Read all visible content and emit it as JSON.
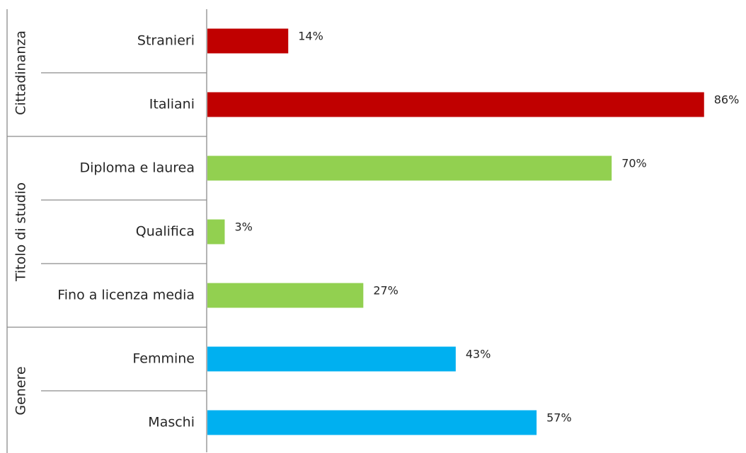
{
  "chart_data": {
    "type": "bar",
    "orientation": "horizontal",
    "xlim": [
      0,
      100
    ],
    "grid": false,
    "legend": "none",
    "groups": [
      {
        "label": "Cittadinanza",
        "color": "#c00000",
        "categories": [
          "Stranieri",
          "Italiani"
        ],
        "values": [
          14,
          86
        ],
        "data_labels": [
          "14%",
          "86%"
        ]
      },
      {
        "label": "Titolo di studio",
        "color": "#92d050",
        "categories": [
          "Diploma e laurea",
          "Qualifica",
          "Fino a licenza media"
        ],
        "values": [
          70,
          3,
          27
        ],
        "data_labels": [
          "70%",
          "3%",
          "27%"
        ]
      },
      {
        "label": "Genere",
        "color": "#00b0f0",
        "categories": [
          "Femmine",
          "Maschi"
        ],
        "values": [
          43,
          57
        ],
        "data_labels": [
          "43%",
          "57%"
        ]
      }
    ]
  }
}
